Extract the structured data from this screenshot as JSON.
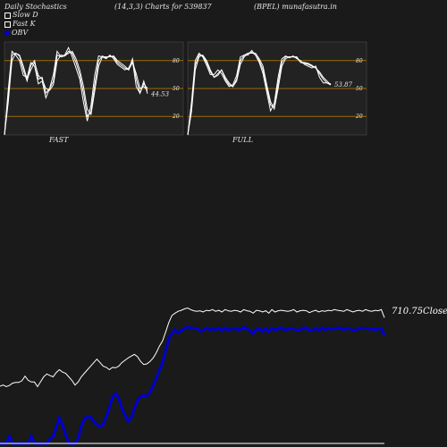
{
  "header": {
    "left": "Daily Stochastics",
    "center": "(14,3,3) Charts for 539837",
    "right": "(BPEL) munafasutra.in"
  },
  "legend": [
    {
      "label": "Slow  D",
      "swatch": "#ffffff",
      "kind": "square"
    },
    {
      "label": "Fast K",
      "swatch": "#ffffff",
      "kind": "square"
    },
    {
      "label": "OBV",
      "swatch": "#0000cc",
      "kind": "dot"
    }
  ],
  "colors": {
    "background": "#1a1a1a",
    "panel": "#222222",
    "obv": "#0000cc",
    "guide": "#a06a00",
    "line": "#ffffff"
  },
  "chart_data": [
    {
      "type": "line",
      "panel": "FAST",
      "label": "FAST",
      "levels": [
        80,
        50,
        20
      ],
      "ylim": [
        0,
        100
      ],
      "last_value_label": "44.53",
      "series": [
        {
          "values": [
            0,
            40,
            86,
            88,
            85,
            70,
            58,
            75,
            80,
            60,
            62,
            45,
            50,
            58,
            86,
            84,
            85,
            90,
            88,
            78,
            65,
            45,
            20,
            25,
            55,
            80,
            85,
            83,
            85,
            84,
            78,
            75,
            72,
            70,
            82,
            60,
            45,
            55,
            50
          ]
        },
        {
          "values": [
            0,
            48,
            90,
            86,
            80,
            64,
            62,
            78,
            74,
            55,
            58,
            40,
            50,
            65,
            90,
            84,
            86,
            94,
            84,
            72,
            60,
            35,
            15,
            32,
            65,
            85,
            84,
            82,
            86,
            82,
            76,
            73,
            70,
            72,
            80,
            52,
            45,
            58,
            44.53
          ]
        },
        {
          "values": [
            0,
            35,
            80,
            88,
            86,
            74,
            60,
            70,
            78,
            64,
            60,
            50,
            48,
            54,
            80,
            86,
            85,
            88,
            90,
            82,
            70,
            52,
            28,
            22,
            48,
            74,
            84,
            84,
            84,
            85,
            80,
            77,
            74,
            70,
            78,
            66,
            50,
            52,
            48
          ]
        }
      ]
    },
    {
      "type": "line",
      "panel": "FULL",
      "label": "FULL",
      "levels": [
        80,
        50,
        20
      ],
      "ylim": [
        0,
        100
      ],
      "last_value_label": "53.87",
      "series": [
        {
          "values": [
            0,
            30,
            75,
            86,
            85,
            78,
            68,
            62,
            66,
            70,
            60,
            54,
            52,
            60,
            80,
            86,
            88,
            89,
            86,
            80,
            70,
            50,
            32,
            30,
            56,
            78,
            84,
            84,
            84,
            83,
            78,
            77,
            76,
            74,
            72,
            66,
            60,
            56,
            53.87
          ]
        },
        {
          "values": [
            0,
            35,
            80,
            88,
            84,
            75,
            65,
            65,
            70,
            66,
            58,
            52,
            54,
            64,
            84,
            86,
            86,
            91,
            86,
            78,
            66,
            46,
            26,
            34,
            62,
            82,
            85,
            83,
            85,
            82,
            80,
            76,
            74,
            72,
            74,
            62,
            56,
            56,
            55
          ]
        },
        {
          "values": [
            0,
            25,
            70,
            84,
            86,
            80,
            70,
            62,
            64,
            70,
            62,
            56,
            52,
            58,
            76,
            84,
            88,
            88,
            88,
            82,
            74,
            54,
            36,
            28,
            50,
            74,
            82,
            84,
            84,
            84,
            78,
            78,
            77,
            75,
            72,
            68,
            62,
            58,
            54
          ]
        }
      ]
    },
    {
      "type": "line",
      "panel": "price-obv",
      "close_label": "710.75",
      "close_word": "Close",
      "series": [
        {
          "name": "Close",
          "values": [
            420,
            425,
            418,
            423,
            433,
            436,
            436,
            443,
            463,
            445,
            438,
            438,
            418,
            439,
            460,
            472,
            465,
            460,
            478,
            490,
            480,
            475,
            460,
            445,
            425,
            438,
            460,
            475,
            490,
            505,
            520,
            535,
            520,
            505,
            500,
            490,
            500,
            498,
            505,
            520,
            530,
            540,
            548,
            555,
            545,
            525,
            512,
            515,
            525,
            540,
            562,
            590,
            612,
            650,
            690,
            720,
            730,
            738,
            742,
            748,
            752,
            745,
            740,
            738,
            740,
            735,
            742,
            740,
            745,
            738,
            742,
            735,
            745,
            740,
            738,
            742,
            740,
            735,
            745,
            740,
            738,
            730,
            742,
            740,
            735,
            740,
            730,
            745,
            735,
            740,
            742,
            740,
            738,
            740,
            745,
            735,
            740,
            742,
            740,
            732,
            738,
            742,
            735,
            740,
            738,
            742,
            740,
            745,
            742,
            740,
            738,
            745,
            740,
            735,
            740,
            742,
            738,
            745,
            740,
            738,
            742,
            740,
            745,
            710.75
          ]
        }
      ]
    }
  ]
}
